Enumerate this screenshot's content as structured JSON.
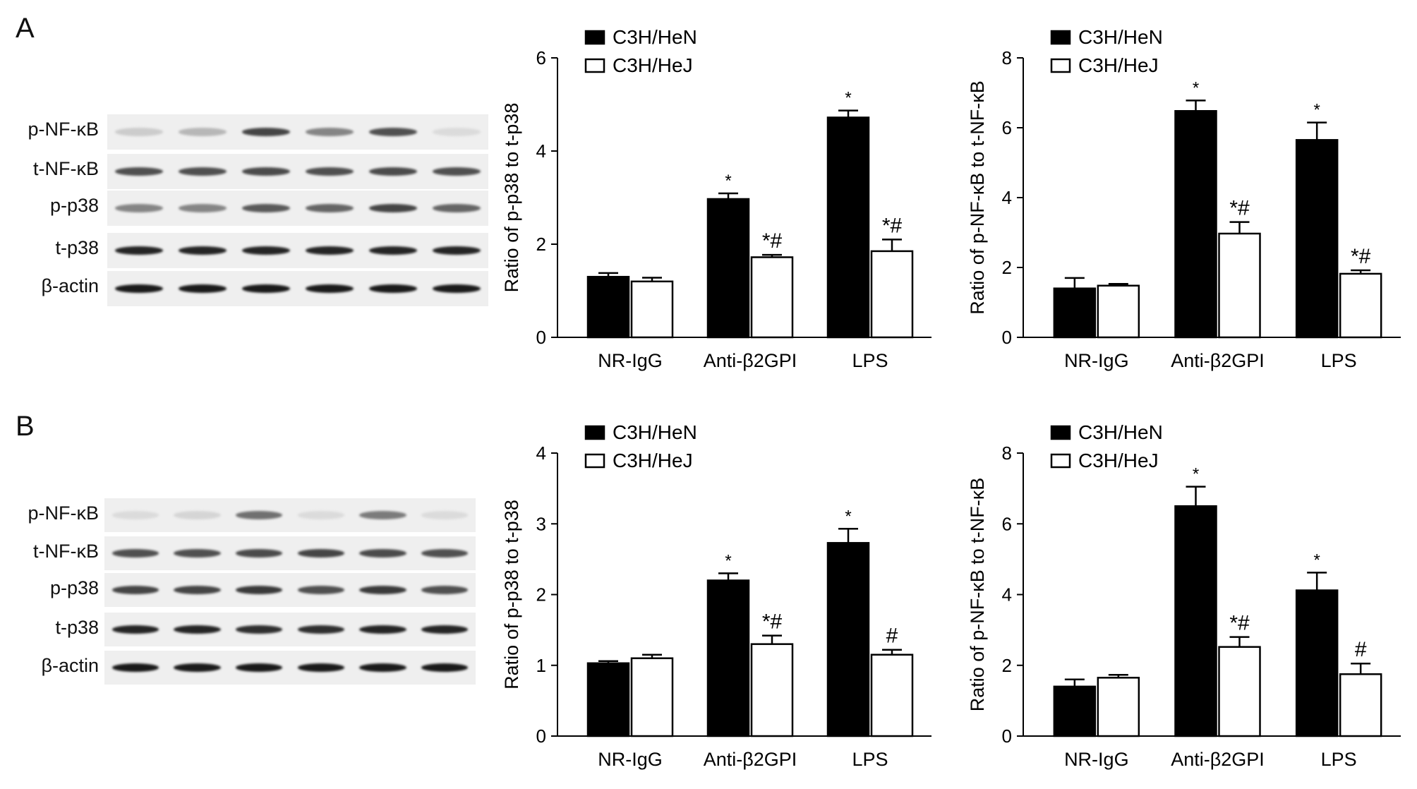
{
  "panels": [
    {
      "letter": "A",
      "blot": {
        "rows": [
          {
            "label": "p-NF-κB",
            "intensity": [
              0.12,
              0.22,
              0.75,
              0.45,
              0.7,
              0.05
            ]
          },
          {
            "label": "t-NF-κB",
            "intensity": [
              0.7,
              0.7,
              0.72,
              0.7,
              0.72,
              0.7
            ]
          },
          {
            "label": "p-p38",
            "intensity": [
              0.45,
              0.45,
              0.65,
              0.6,
              0.75,
              0.6
            ]
          },
          {
            "label": "t-p38",
            "intensity": [
              0.9,
              0.9,
              0.9,
              0.9,
              0.9,
              0.9
            ]
          },
          {
            "label": "β-actin",
            "intensity": [
              0.95,
              0.95,
              0.95,
              0.95,
              0.95,
              0.95
            ]
          }
        ]
      }
    },
    {
      "letter": "B",
      "blot": {
        "rows": [
          {
            "label": "p-NF-κB",
            "intensity": [
              0.05,
              0.08,
              0.55,
              0.05,
              0.5,
              0.05
            ]
          },
          {
            "label": "t-NF-κB",
            "intensity": [
              0.7,
              0.7,
              0.72,
              0.75,
              0.72,
              0.7
            ]
          },
          {
            "label": "p-p38",
            "intensity": [
              0.75,
              0.75,
              0.8,
              0.7,
              0.8,
              0.7
            ]
          },
          {
            "label": "t-p38",
            "intensity": [
              0.9,
              0.9,
              0.85,
              0.85,
              0.9,
              0.9
            ]
          },
          {
            "label": "β-actin",
            "intensity": [
              0.95,
              0.95,
              0.95,
              0.95,
              0.95,
              0.95
            ]
          }
        ]
      }
    }
  ],
  "colors": {
    "heN": "#000000",
    "heJ": "#ffffff",
    "axis": "#000000"
  },
  "chart_data": [
    {
      "type": "bar",
      "panel": "A",
      "ylabel": "Ratio of p-p38 to t-p38",
      "categories": [
        "NR-IgG",
        "Anti-β2GPI",
        "LPS"
      ],
      "ylim": [
        0,
        6
      ],
      "yticks": [
        0,
        2,
        4,
        6
      ],
      "legend": "top-left",
      "series": [
        {
          "name": "C3H/HeN",
          "values": [
            1.3,
            2.97,
            4.72
          ],
          "errors": [
            0.08,
            0.12,
            0.15
          ],
          "annotations": [
            "",
            "*",
            "*"
          ]
        },
        {
          "name": "C3H/HeJ",
          "values": [
            1.2,
            1.72,
            1.85
          ],
          "errors": [
            0.08,
            0.05,
            0.25
          ],
          "annotations": [
            "",
            "*#",
            "*#"
          ]
        }
      ]
    },
    {
      "type": "bar",
      "panel": "A",
      "ylabel": "Ratio of p-NF-κB to t-NF-κB",
      "categories": [
        "NR-IgG",
        "Anti-β2GPI",
        "LPS"
      ],
      "ylim": [
        0,
        8
      ],
      "yticks": [
        0,
        2,
        4,
        6,
        8
      ],
      "legend": "top-left",
      "series": [
        {
          "name": "C3H/HeN",
          "values": [
            1.4,
            6.48,
            5.65
          ],
          "errors": [
            0.3,
            0.3,
            0.5
          ],
          "annotations": [
            "",
            "*",
            "*"
          ]
        },
        {
          "name": "C3H/HeJ",
          "values": [
            1.48,
            2.97,
            1.82
          ],
          "errors": [
            0.05,
            0.33,
            0.1
          ],
          "annotations": [
            "",
            "*#",
            "*#"
          ]
        }
      ]
    },
    {
      "type": "bar",
      "panel": "B",
      "ylabel": "Ratio of p-p38 to t-p38",
      "categories": [
        "NR-IgG",
        "Anti-β2GPI",
        "LPS"
      ],
      "ylim": [
        0,
        4
      ],
      "yticks": [
        0,
        1,
        2,
        3,
        4
      ],
      "legend": "top-left",
      "series": [
        {
          "name": "C3H/HeN",
          "values": [
            1.03,
            2.2,
            2.73
          ],
          "errors": [
            0.03,
            0.1,
            0.2
          ],
          "annotations": [
            "",
            "*",
            "*"
          ]
        },
        {
          "name": "C3H/HeJ",
          "values": [
            1.1,
            1.3,
            1.15
          ],
          "errors": [
            0.05,
            0.12,
            0.07
          ],
          "annotations": [
            "",
            "*#",
            "#"
          ]
        }
      ]
    },
    {
      "type": "bar",
      "panel": "B",
      "ylabel": "Ratio of p-NF-κB to t-NF-κB",
      "categories": [
        "NR-IgG",
        "Anti-β2GPI",
        "LPS"
      ],
      "ylim": [
        0,
        8
      ],
      "yticks": [
        0,
        2,
        4,
        6,
        8
      ],
      "legend": "top-left",
      "series": [
        {
          "name": "C3H/HeN",
          "values": [
            1.4,
            6.5,
            4.12
          ],
          "errors": [
            0.2,
            0.55,
            0.5
          ],
          "annotations": [
            "",
            "*",
            "*"
          ]
        },
        {
          "name": "C3H/HeJ",
          "values": [
            1.65,
            2.52,
            1.75
          ],
          "errors": [
            0.08,
            0.28,
            0.3
          ],
          "annotations": [
            "",
            "*#",
            "#"
          ]
        }
      ]
    }
  ]
}
